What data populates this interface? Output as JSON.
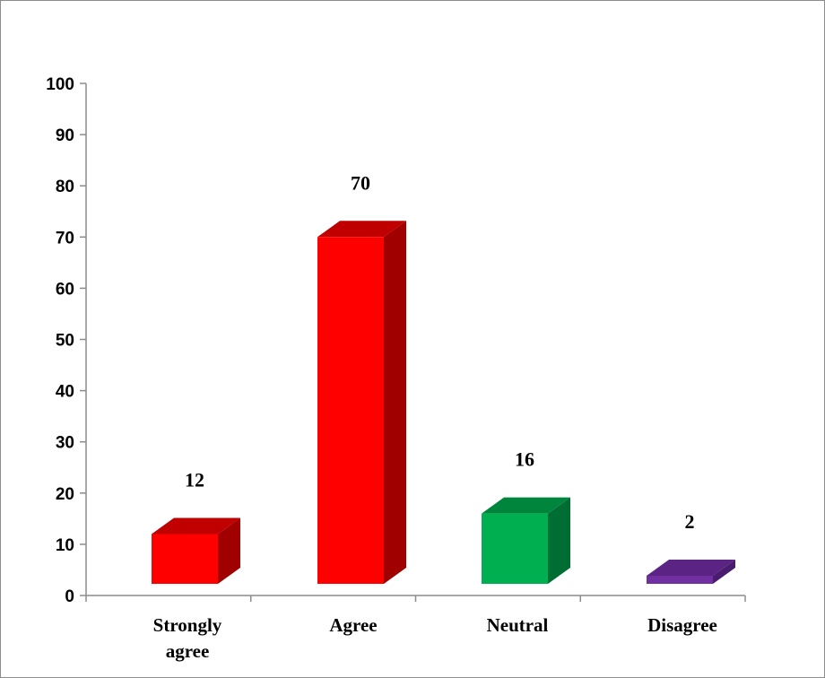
{
  "chart_data": {
    "type": "bar",
    "style": "3d-column",
    "categories": [
      "Strongly agree",
      "Agree",
      "Neutral",
      "Disagree"
    ],
    "category_lines": [
      [
        "Strongly",
        "agree"
      ],
      [
        "Agree"
      ],
      [
        "Neutral"
      ],
      [
        "Disagree"
      ]
    ],
    "values": [
      12,
      70,
      16,
      2
    ],
    "data_labels": [
      "12",
      "70",
      "16",
      "2"
    ],
    "ylim": [
      0,
      100
    ],
    "yticks": [
      0,
      10,
      20,
      30,
      40,
      50,
      60,
      70,
      80,
      90,
      100
    ],
    "title": "",
    "xlabel": "",
    "ylabel": "",
    "grid": false,
    "legend": "none",
    "colors": [
      {
        "front": "#ff0000",
        "top": "#c00000",
        "side": "#a00000"
      },
      {
        "front": "#ff0000",
        "top": "#c00000",
        "side": "#a00000"
      },
      {
        "front": "#00b050",
        "top": "#00863c",
        "side": "#006e32"
      },
      {
        "front": "#7030a0",
        "top": "#5a2384",
        "side": "#4a1c6e"
      }
    ],
    "axis_color": "#8c8c8c"
  }
}
